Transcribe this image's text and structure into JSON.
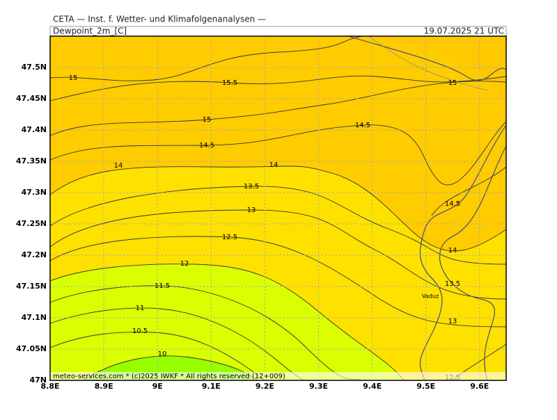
{
  "header": {
    "title": "CETA — Inst. f. Wetter- und Klimafolgenanalysen —",
    "variable": "Dewpoint_2m_[C]",
    "valid_time": "19.07.2025 21 UTC"
  },
  "axes": {
    "lat_labels": [
      "47.5N",
      "47.45N",
      "47.4N",
      "47.35N",
      "47.3N",
      "47.25N",
      "47.2N",
      "47.15N",
      "47.1N",
      "47.05N",
      "47N"
    ],
    "lon_labels": [
      "8.8E",
      "8.9E",
      "9E",
      "9.1E",
      "9.2E",
      "9.3E",
      "9.4E",
      "9.5E",
      "9.6E"
    ]
  },
  "contour_labels": [
    "15",
    "15.5",
    "15",
    "15",
    "14.5",
    "14.5",
    "14",
    "14",
    "13.5",
    "13",
    "14.5",
    "12.5",
    "14",
    "12",
    "11.5",
    "13.5",
    "11",
    "13",
    "10.5",
    "10",
    "12.5"
  ],
  "place": "Vaduz",
  "footer": "meteo-services.com * (c)2025 IWKF * All rights reserved (12+009)"
}
